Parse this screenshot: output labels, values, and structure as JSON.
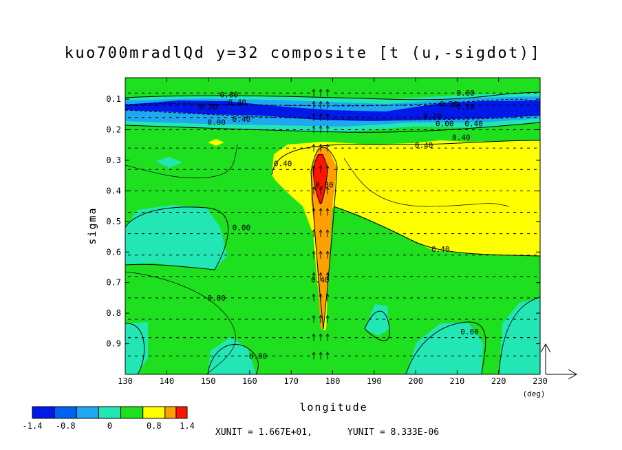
{
  "chart_data": {
    "type": "heatmap",
    "title": "kuo700mradlQd y=32 composite [t (u,-sigdot)]",
    "xlabel": "longitude",
    "x_unit_label": "(deg)",
    "ylabel": "sigma",
    "xlim": [
      130,
      230
    ],
    "ylim": [
      1.0,
      0.03
    ],
    "x_ticks": [
      "130",
      "140",
      "150",
      "160",
      "170",
      "180",
      "190",
      "200",
      "210",
      "220",
      "230"
    ],
    "y_ticks": [
      "0.1",
      "0.2",
      "0.3",
      "0.4",
      "0.5",
      "0.6",
      "0.7",
      "0.8",
      "0.9"
    ],
    "colorbar": {
      "tick_labels": [
        "-1.4",
        "-0.8",
        "0",
        "0.8",
        "1.4"
      ],
      "levels": [
        -1.4,
        -1.0,
        -0.6,
        -0.2,
        0.2,
        0.6,
        1.0,
        1.2,
        1.4
      ],
      "colors": [
        "#0018e8",
        "#0060f0",
        "#1ea8f0",
        "#22e6b4",
        "#1ee01e",
        "#ffff00",
        "#ffa000",
        "#ff1400"
      ]
    },
    "contour_labels": [
      {
        "text": "0.00",
        "x": 155,
        "y": 0.085
      },
      {
        "text": "0.40",
        "x": 157,
        "y": 0.11
      },
      {
        "text": "0.20",
        "x": 150,
        "y": 0.125
      },
      {
        "text": "0.40",
        "x": 158,
        "y": 0.165
      },
      {
        "text": "0.00",
        "x": 152,
        "y": 0.175
      },
      {
        "text": "0.00",
        "x": 212,
        "y": 0.08
      },
      {
        "text": "0.20",
        "x": 208,
        "y": 0.115
      },
      {
        "text": "0.20",
        "x": 212,
        "y": 0.125
      },
      {
        "text": "0.20",
        "x": 204,
        "y": 0.155
      },
      {
        "text": "0.00",
        "x": 207,
        "y": 0.18
      },
      {
        "text": "0.40",
        "x": 214,
        "y": 0.18
      },
      {
        "text": "0.40",
        "x": 202,
        "y": 0.25
      },
      {
        "text": "0.40",
        "x": 211,
        "y": 0.225
      },
      {
        "text": "0.40",
        "x": 168,
        "y": 0.31
      },
      {
        "text": "0.80",
        "x": 178,
        "y": 0.38
      },
      {
        "text": "0.40",
        "x": 206,
        "y": 0.59
      },
      {
        "text": "0.00",
        "x": 158,
        "y": 0.52
      },
      {
        "text": "0.00",
        "x": 152,
        "y": 0.75
      },
      {
        "text": "0.40",
        "x": 177,
        "y": 0.69
      },
      {
        "text": "0.00",
        "x": 213,
        "y": 0.86
      },
      {
        "text": "0.00",
        "x": 162,
        "y": 0.94
      }
    ],
    "vector_reference_labels": {
      "xunit": "XUNIT = 1.667E+01,",
      "yunit": "YUNIT = 8.333E-06"
    }
  }
}
